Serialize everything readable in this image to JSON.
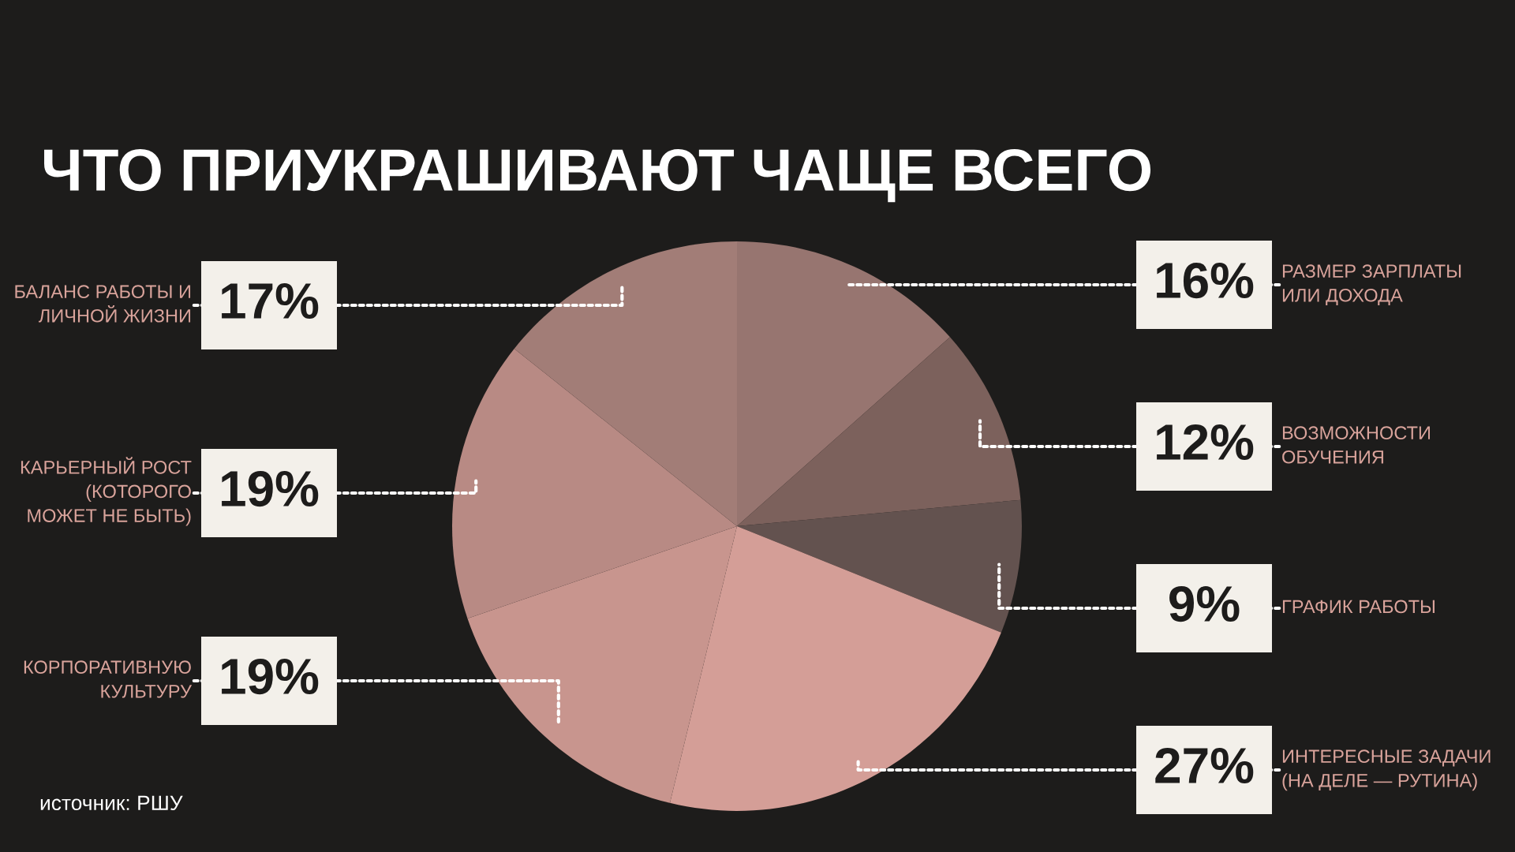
{
  "chart_data": {
    "type": "pie",
    "title": "ЧТО ПРИУКРАШИВАЮТ ЧАЩЕ ВСЕГО",
    "categories": [
      "РАЗМЕР ЗАРПЛАТЫ\nИЛИ ДОХОДА",
      "ВОЗМОЖНОСТИ\nОБУЧЕНИЯ",
      "ГРАФИК РАБОТЫ",
      "ИНТЕРЕСНЫЕ ЗАДАЧИ\n(НА ДЕЛЕ — РУТИНА)",
      "КОРПОРАТИВНУЮ\nКУЛЬТУРУ",
      "КАРЬЕРНЫЙ РОСТ\n(КОТОРОГО\nМОЖЕТ НЕ БЫТЬ)",
      "БАЛАНС РАБОТЫ И\nЛИЧНОЙ ЖИЗНИ"
    ],
    "values": [
      16,
      12,
      9,
      27,
      19,
      19,
      17
    ],
    "value_labels": [
      "16%",
      "12%",
      "9%",
      "27%",
      "19%",
      "19%",
      "17%"
    ],
    "colors": [
      "#977570",
      "#7c615c",
      "#63524f",
      "#d49e97",
      "#c8958e",
      "#b88a84",
      "#a27d77"
    ],
    "annotations": [
      "источник: РШУ"
    ],
    "legend": false
  }
}
